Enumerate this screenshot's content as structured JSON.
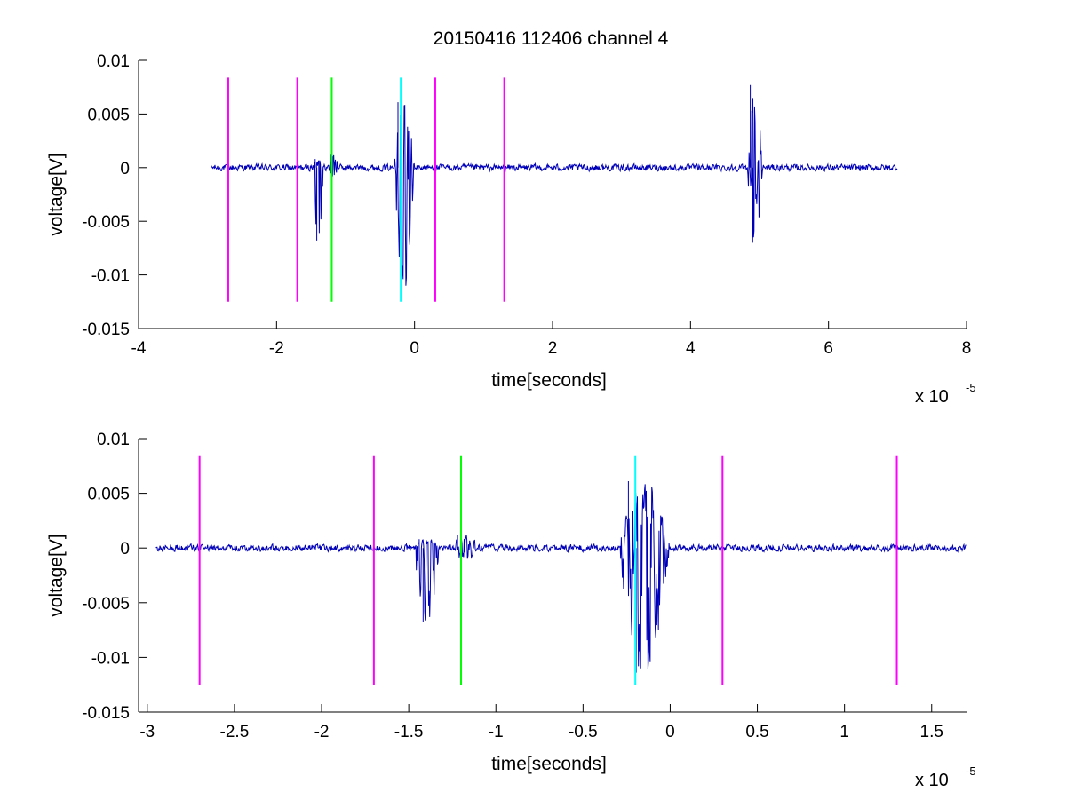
{
  "figure": {
    "title": "20150416 112406 channel 4",
    "background": "#ffffff"
  },
  "colors": {
    "signal": "#0000b8",
    "magenta": "#ff00ff",
    "green": "#00ff00",
    "cyan": "#00ffff",
    "axis": "#000000"
  },
  "chart_data": [
    {
      "type": "line",
      "title": "20150416 112406 channel 4",
      "xlabel": "time[seconds]",
      "ylabel": "voltage[V]",
      "x_multiplier_label": "x 10",
      "x_multiplier_exponent": "-5",
      "xlim": [
        -4,
        8
      ],
      "ylim": [
        -0.015,
        0.01
      ],
      "xticks": [
        -4,
        -2,
        0,
        2,
        4,
        6,
        8
      ],
      "xtick_labels": [
        "-4",
        "-2",
        "0",
        "2",
        "4",
        "6",
        "8"
      ],
      "yticks": [
        0.01,
        0.005,
        0,
        -0.005,
        -0.01,
        -0.015
      ],
      "ytick_labels": [
        "0.01",
        "0.005",
        "0",
        "-0.005",
        "-0.01",
        "-0.015"
      ],
      "grid": false,
      "signal": {
        "x_range": [
          -2.95,
          7.0
        ],
        "baseline": 0,
        "noise_amplitude": 0.0004,
        "bursts": [
          {
            "x": [
              -1.47,
              -1.32
            ],
            "min": -0.0068,
            "max": 0.0008
          },
          {
            "x": [
              -1.25,
              -1.1
            ],
            "min": -0.001,
            "max": 0.0012
          },
          {
            "x": [
              -0.3,
              0.0
            ],
            "min": -0.0114,
            "max": 0.0061
          },
          {
            "x": [
              4.82,
              5.05
            ],
            "min": -0.007,
            "max": 0.0077
          }
        ]
      },
      "markers": [
        {
          "x": -2.7,
          "color": "magenta",
          "y_range": [
            -0.0125,
            0.0084
          ]
        },
        {
          "x": -1.7,
          "color": "magenta",
          "y_range": [
            -0.0125,
            0.0084
          ]
        },
        {
          "x": -1.2,
          "color": "green",
          "y_range": [
            -0.0125,
            0.0084
          ]
        },
        {
          "x": -0.2,
          "color": "cyan",
          "y_range": [
            -0.0125,
            0.0084
          ]
        },
        {
          "x": 0.3,
          "color": "magenta",
          "y_range": [
            -0.0125,
            0.0084
          ]
        },
        {
          "x": 1.3,
          "color": "magenta",
          "y_range": [
            -0.0125,
            0.0084
          ]
        }
      ]
    },
    {
      "type": "line",
      "title": "",
      "xlabel": "time[seconds]",
      "ylabel": "voltage[V]",
      "x_multiplier_label": "x 10",
      "x_multiplier_exponent": "-5",
      "xlim": [
        -3.05,
        1.7
      ],
      "ylim": [
        -0.015,
        0.01
      ],
      "xticks": [
        -3,
        -2.5,
        -2,
        -1.5,
        -1,
        -0.5,
        0,
        0.5,
        1,
        1.5
      ],
      "xtick_labels": [
        "-3",
        "-2.5",
        "-2",
        "-1.5",
        "-1",
        "-0.5",
        "0",
        "0.5",
        "1",
        "1.5"
      ],
      "yticks": [
        0.01,
        0.005,
        0,
        -0.005,
        -0.01,
        -0.015
      ],
      "ytick_labels": [
        "0.01",
        "0.005",
        "0",
        "-0.005",
        "-0.01",
        "-0.015"
      ],
      "grid": false,
      "signal": {
        "x_range": [
          -2.95,
          1.7
        ],
        "baseline": 0,
        "noise_amplitude": 0.0004,
        "bursts": [
          {
            "x": [
              -1.47,
              -1.32
            ],
            "min": -0.0068,
            "max": 0.0008
          },
          {
            "x": [
              -1.25,
              -1.1
            ],
            "min": -0.001,
            "max": 0.0012
          },
          {
            "x": [
              -0.3,
              0.0
            ],
            "min": -0.0114,
            "max": 0.0061
          }
        ]
      },
      "markers": [
        {
          "x": -2.7,
          "color": "magenta",
          "y_range": [
            -0.0125,
            0.0084
          ]
        },
        {
          "x": -1.7,
          "color": "magenta",
          "y_range": [
            -0.0125,
            0.0084
          ]
        },
        {
          "x": -1.2,
          "color": "green",
          "y_range": [
            -0.0125,
            0.0084
          ]
        },
        {
          "x": -0.2,
          "color": "cyan",
          "y_range": [
            -0.0125,
            0.0084
          ]
        },
        {
          "x": 0.3,
          "color": "magenta",
          "y_range": [
            -0.0125,
            0.0084
          ]
        },
        {
          "x": 1.3,
          "color": "magenta",
          "y_range": [
            -0.0125,
            0.0084
          ]
        }
      ]
    }
  ]
}
